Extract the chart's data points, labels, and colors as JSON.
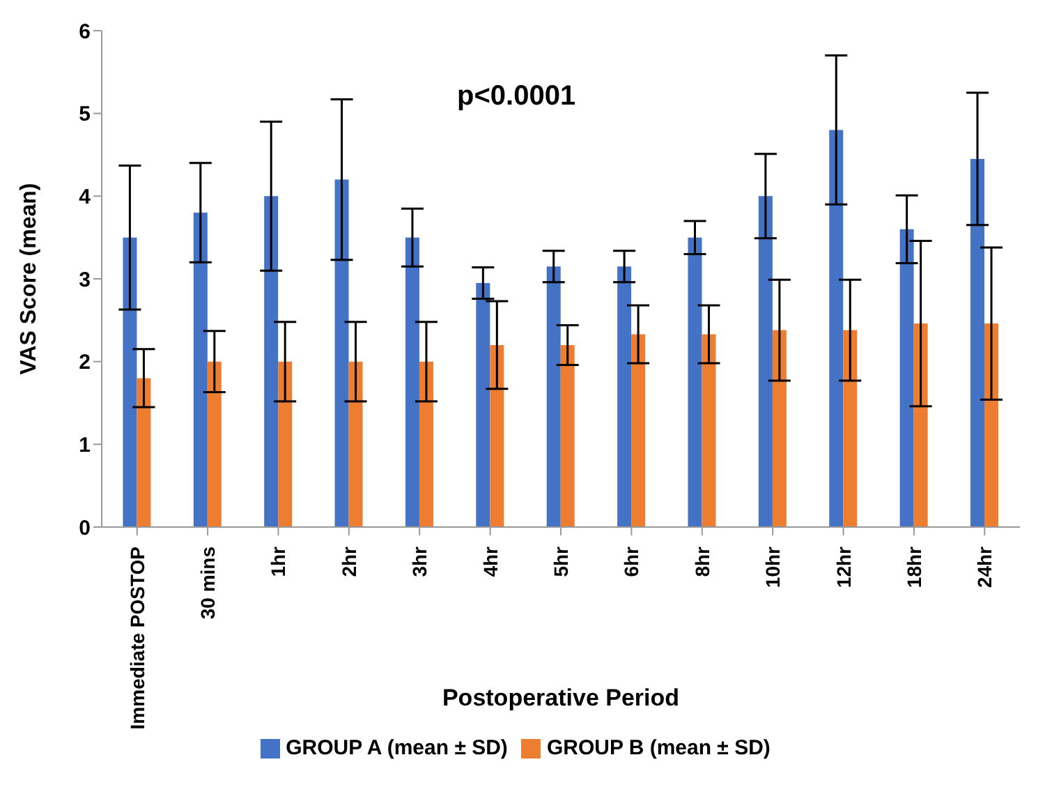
{
  "chart_data": {
    "type": "bar",
    "xlabel": "Postoperative Period",
    "ylabel": "VAS Score (mean)",
    "annotations": [
      "p<0.0001"
    ],
    "categories": [
      "Immediate POSTOP",
      "30 mins",
      "1hr",
      "2hr",
      "3hr",
      "4hr",
      "5hr",
      "6hr",
      "8hr",
      "10hr",
      "12hr",
      "18hr",
      "24hr"
    ],
    "series": [
      {
        "name": "GROUP A (mean ± SD)",
        "color": "#4472c4",
        "values": [
          3.5,
          3.8,
          4.0,
          4.2,
          3.5,
          2.95,
          3.15,
          3.15,
          3.5,
          4.0,
          4.8,
          3.6,
          4.45
        ],
        "errors": [
          0.87,
          0.6,
          0.9,
          0.97,
          0.35,
          0.19,
          0.19,
          0.19,
          0.2,
          0.51,
          0.9,
          0.41,
          0.8
        ]
      },
      {
        "name": "GROUP B (mean ± SD)",
        "color": "#ed7d31",
        "values": [
          1.8,
          2.0,
          2.0,
          2.0,
          2.0,
          2.2,
          2.2,
          2.33,
          2.33,
          2.38,
          2.38,
          2.46,
          2.46
        ],
        "errors": [
          0.35,
          0.37,
          0.48,
          0.48,
          0.48,
          0.53,
          0.24,
          0.35,
          0.35,
          0.61,
          0.61,
          1.0,
          0.92
        ]
      }
    ],
    "ylim": [
      0,
      6
    ],
    "yticks": [
      0,
      1,
      2,
      3,
      4,
      5,
      6
    ],
    "grid": false,
    "legend": "bottom"
  }
}
